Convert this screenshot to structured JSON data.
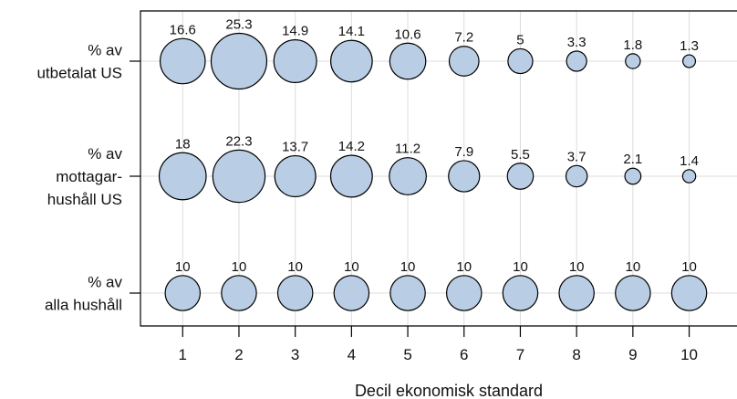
{
  "chart_data": {
    "type": "scatter",
    "title": "",
    "xlabel": "Decil ekonomisk standard",
    "ylabel": "",
    "x_ticks": [
      "1",
      "2",
      "3",
      "4",
      "5",
      "6",
      "7",
      "8",
      "9",
      "10"
    ],
    "xlim": [
      0.25,
      10.85
    ],
    "grid": true,
    "legend": "none",
    "bubble_color": "#b9cde5",
    "bubble_edge_color": "#000000",
    "rows": [
      {
        "label_lines": [
          "% av",
          "utbetalat US"
        ],
        "values": [
          16.6,
          25.3,
          14.9,
          14.1,
          10.6,
          7.2,
          5,
          3.3,
          1.8,
          1.3
        ],
        "value_labels": [
          "16.6",
          "25.3",
          "14.9",
          "14.1",
          "10.6",
          "7.2",
          "5",
          "3.3",
          "1.8",
          "1.3"
        ]
      },
      {
        "label_lines": [
          "% av",
          "mottagar-",
          "hushåll US"
        ],
        "values": [
          18,
          22.3,
          13.7,
          14.2,
          11.2,
          7.9,
          5.5,
          3.7,
          2.1,
          1.4
        ],
        "value_labels": [
          "18",
          "22.3",
          "13.7",
          "14.2",
          "11.2",
          "7.9",
          "5.5",
          "3.7",
          "2.1",
          "1.4"
        ]
      },
      {
        "label_lines": [
          "% av",
          "alla hushåll"
        ],
        "values": [
          10,
          10,
          10,
          10,
          10,
          10,
          10,
          10,
          10,
          10
        ],
        "value_labels": [
          "10",
          "10",
          "10",
          "10",
          "10",
          "10",
          "10",
          "10",
          "10",
          "10"
        ]
      }
    ]
  }
}
